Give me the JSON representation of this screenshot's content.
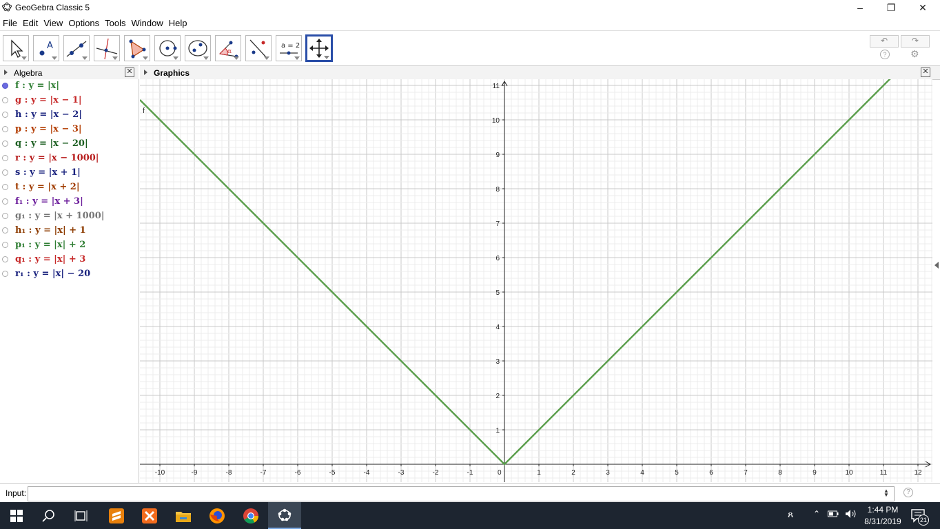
{
  "window": {
    "title": "GeoGebra Classic 5",
    "minimize": "–",
    "restore": "❐",
    "close": "✕"
  },
  "menu": [
    "File",
    "Edit",
    "View",
    "Options",
    "Tools",
    "Window",
    "Help"
  ],
  "toolbar": {
    "tools": [
      {
        "name": "move-tool-icon"
      },
      {
        "name": "point-tool-icon"
      },
      {
        "name": "line-tool-icon"
      },
      {
        "name": "perpendicular-line-tool-icon"
      },
      {
        "name": "polygon-tool-icon"
      },
      {
        "name": "circle-tool-icon"
      },
      {
        "name": "ellipse-tool-icon"
      },
      {
        "name": "angle-tool-icon"
      },
      {
        "name": "reflect-tool-icon"
      },
      {
        "name": "slider-tool-icon",
        "label": "a = 2"
      },
      {
        "name": "move-graphics-view-tool-icon"
      }
    ],
    "undo": "↶",
    "redo": "↷",
    "help": "?",
    "settings": "⚙"
  },
  "algebra": {
    "title": "Algebra",
    "close": "✕",
    "items": [
      {
        "label": "f : y = |x|",
        "color": "#2e7d32",
        "shown": true
      },
      {
        "label": "g : y = |x − 1|",
        "color": "#c62828",
        "shown": false
      },
      {
        "label": "h : y = |x − 2|",
        "color": "#1a237e",
        "shown": false
      },
      {
        "label": "p : y = |x − 3|",
        "color": "#b33c00",
        "shown": false
      },
      {
        "label": "q : y = |x − 20|",
        "color": "#1b5e20",
        "shown": false
      },
      {
        "label": "r : y = |x − 1000|",
        "color": "#b71c1c",
        "shown": false
      },
      {
        "label": "s : y = |x + 1|",
        "color": "#1a237e",
        "shown": false
      },
      {
        "label": "t : y = |x + 2|",
        "color": "#a03c00",
        "shown": false
      },
      {
        "label": "f₁ : y = |x + 3|",
        "color": "#6a1b9a",
        "shown": false
      },
      {
        "label": "g₁ : y = |x + 1000|",
        "color": "#757575",
        "shown": false
      },
      {
        "label": "h₁ : y = |x| + 1",
        "color": "#8d3b00",
        "shown": false
      },
      {
        "label": "p₁ : y = |x| + 2",
        "color": "#2e7d32",
        "shown": false
      },
      {
        "label": "q₁ : y = |x| + 3",
        "color": "#c62828",
        "shown": false
      },
      {
        "label": "r₁ : y = |x| − 20",
        "color": "#1a237e",
        "shown": false
      }
    ]
  },
  "graphics": {
    "title": "Graphics",
    "close": "✕",
    "curve_label": "f",
    "curve_color": "#5a9e4b",
    "x_ticks": [
      "-10",
      "-9",
      "-8",
      "-7",
      "-6",
      "-5",
      "-4",
      "-3",
      "-2",
      "-1",
      "0",
      "1",
      "2",
      "3",
      "4",
      "5",
      "6",
      "7",
      "8",
      "9",
      "10",
      "11",
      "12"
    ],
    "y_ticks": [
      "1",
      "2",
      "3",
      "4",
      "5",
      "6",
      "7",
      "8",
      "9",
      "10",
      "11"
    ]
  },
  "input": {
    "label": "Input:",
    "value": "",
    "help": "?"
  },
  "taskbar": {
    "time": "1:44 PM",
    "date": "8/31/2019",
    "notifications": "21"
  }
}
